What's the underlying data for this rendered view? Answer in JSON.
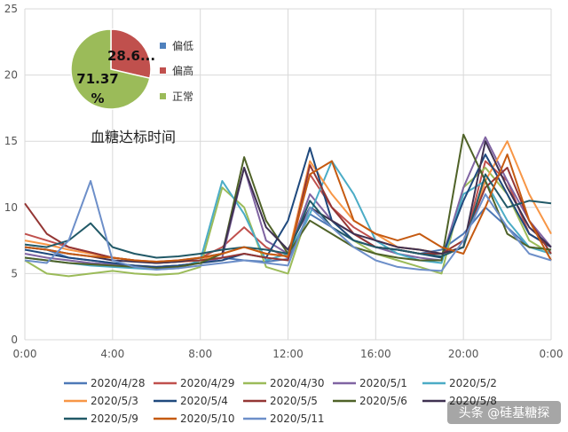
{
  "chart_data": [
    {
      "type": "line",
      "title": "",
      "xlabel": "",
      "ylabel": "",
      "xlim": [
        0,
        24
      ],
      "ylim": [
        0,
        25
      ],
      "x_ticks": [
        "0:00",
        "4:00",
        "8:00",
        "12:00",
        "16:00",
        "20:00",
        "0:00"
      ],
      "y_ticks": [
        "0",
        "5",
        "10",
        "15",
        "20",
        "25"
      ],
      "grid": "both",
      "legend_position": "bottom",
      "x": [
        0,
        1,
        2,
        3,
        4,
        5,
        6,
        7,
        8,
        9,
        10,
        11,
        12,
        13,
        14,
        15,
        16,
        17,
        18,
        19,
        20,
        21,
        22,
        23,
        24
      ],
      "series": [
        {
          "name": "2020/4/28",
          "color": "#4e79b7",
          "values": [
            7.0,
            6.8,
            6.2,
            6.0,
            5.8,
            5.5,
            5.5,
            5.6,
            5.8,
            6.2,
            6.0,
            5.9,
            6.1,
            9.5,
            8.5,
            7.5,
            7.0,
            6.8,
            6.5,
            6.8,
            8.0,
            10.0,
            8.5,
            7.0,
            6.8
          ]
        },
        {
          "name": "2020/4/29",
          "color": "#c0504d",
          "values": [
            8.0,
            7.5,
            7.0,
            6.6,
            6.2,
            6.0,
            5.9,
            6.0,
            6.2,
            7.0,
            8.5,
            7.0,
            6.2,
            12.5,
            10.0,
            8.5,
            7.5,
            7.0,
            6.8,
            6.5,
            7.0,
            13.5,
            12.0,
            8.0,
            7.0
          ]
        },
        {
          "name": "2020/4/30",
          "color": "#9bbb59",
          "values": [
            6.0,
            5.0,
            4.8,
            5.0,
            5.2,
            5.0,
            4.9,
            5.0,
            5.5,
            11.5,
            10.0,
            5.5,
            5.0,
            10.0,
            9.0,
            7.5,
            6.5,
            6.0,
            5.5,
            5.0,
            11.5,
            13.0,
            11.0,
            7.5,
            6.5
          ]
        },
        {
          "name": "2020/5/1",
          "color": "#8064a2",
          "values": [
            6.5,
            6.2,
            6.0,
            5.8,
            5.7,
            5.6,
            5.5,
            5.6,
            5.8,
            6.2,
            13.0,
            7.5,
            6.5,
            11.0,
            9.0,
            8.0,
            7.0,
            6.5,
            6.2,
            6.0,
            11.5,
            15.3,
            12.0,
            9.0,
            7.0
          ]
        },
        {
          "name": "2020/5/2",
          "color": "#4bacc6",
          "values": [
            6.2,
            6.0,
            5.8,
            5.6,
            5.5,
            5.4,
            5.3,
            5.4,
            6.0,
            12.0,
            9.5,
            6.0,
            6.5,
            9.5,
            13.5,
            11.0,
            7.5,
            6.5,
            6.0,
            5.8,
            11.0,
            12.0,
            9.0,
            7.0,
            6.5
          ]
        },
        {
          "name": "2020/5/3",
          "color": "#f79646",
          "values": [
            7.5,
            7.2,
            6.8,
            6.5,
            6.2,
            6.0,
            5.8,
            5.9,
            6.0,
            6.5,
            7.0,
            6.5,
            6.3,
            13.5,
            11.0,
            9.0,
            8.0,
            7.0,
            6.8,
            6.5,
            7.0,
            12.0,
            15.0,
            11.0,
            8.0
          ]
        },
        {
          "name": "2020/5/4",
          "color": "#1f497d",
          "values": [
            6.8,
            6.5,
            6.2,
            6.0,
            5.8,
            5.6,
            5.5,
            5.6,
            5.8,
            6.0,
            6.5,
            6.2,
            9.0,
            14.5,
            9.0,
            7.5,
            7.0,
            6.8,
            6.5,
            6.2,
            10.5,
            14.0,
            11.0,
            8.0,
            7.0
          ]
        },
        {
          "name": "2020/5/5",
          "color": "#943634",
          "values": [
            10.3,
            8.0,
            7.0,
            6.6,
            6.2,
            6.0,
            5.8,
            5.9,
            6.0,
            6.2,
            6.5,
            6.2,
            6.0,
            13.2,
            10.0,
            8.0,
            7.0,
            6.8,
            6.5,
            6.5,
            7.5,
            11.5,
            13.0,
            9.0,
            6.5
          ]
        },
        {
          "name": "2020/5/6",
          "color": "#4f6228",
          "values": [
            6.2,
            6.0,
            5.8,
            5.7,
            5.6,
            5.5,
            5.4,
            5.5,
            5.8,
            6.5,
            13.8,
            9.0,
            6.5,
            9.0,
            8.0,
            7.0,
            6.5,
            6.2,
            6.0,
            6.0,
            15.5,
            12.0,
            8.0,
            7.0,
            6.8
          ]
        },
        {
          "name": "2020/5/8",
          "color": "#3f3151",
          "values": [
            7.0,
            6.8,
            6.5,
            6.3,
            6.0,
            5.9,
            5.8,
            5.9,
            6.2,
            6.5,
            13.0,
            8.5,
            6.8,
            10.0,
            9.0,
            8.0,
            7.5,
            7.0,
            6.8,
            6.5,
            7.0,
            15.0,
            11.5,
            8.5,
            7.0
          ]
        },
        {
          "name": "2020/5/9",
          "color": "#215967",
          "values": [
            7.2,
            7.0,
            7.5,
            8.8,
            7.0,
            6.5,
            6.2,
            6.3,
            6.5,
            6.8,
            7.0,
            6.8,
            6.5,
            10.5,
            8.5,
            7.5,
            7.0,
            6.8,
            6.5,
            6.3,
            7.0,
            12.5,
            10.0,
            10.5,
            10.3
          ]
        },
        {
          "name": "2020/5/10",
          "color": "#c55a11",
          "values": [
            7.0,
            6.8,
            6.5,
            6.3,
            6.2,
            6.0,
            5.9,
            6.0,
            6.2,
            6.5,
            7.0,
            6.5,
            6.3,
            12.5,
            13.5,
            9.0,
            8.0,
            7.5,
            8.0,
            7.0,
            6.5,
            10.0,
            14.0,
            9.0,
            6.0
          ]
        },
        {
          "name": "2020/5/11",
          "color": "#6d8fc9",
          "values": [
            6.0,
            5.8,
            7.5,
            12.0,
            6.0,
            5.5,
            5.3,
            5.4,
            5.6,
            5.8,
            6.0,
            5.8,
            5.6,
            10.0,
            8.5,
            7.0,
            6.0,
            5.5,
            5.3,
            5.2,
            7.5,
            11.0,
            8.5,
            6.5,
            6.0
          ]
        }
      ]
    },
    {
      "type": "pie",
      "title": "血糖达标时间",
      "slices": [
        {
          "name": "偏低",
          "value": 0.0,
          "color": "#4f81bd",
          "label": ""
        },
        {
          "name": "偏高",
          "value": 28.63,
          "color": "#c0504d",
          "label": "28.6..."
        },
        {
          "name": "正常",
          "value": 71.37,
          "color": "#9bbb59",
          "label": "71.37\n%"
        }
      ],
      "legend_position": "right"
    }
  ],
  "watermark": {
    "text": "头条 @硅基糖探"
  }
}
